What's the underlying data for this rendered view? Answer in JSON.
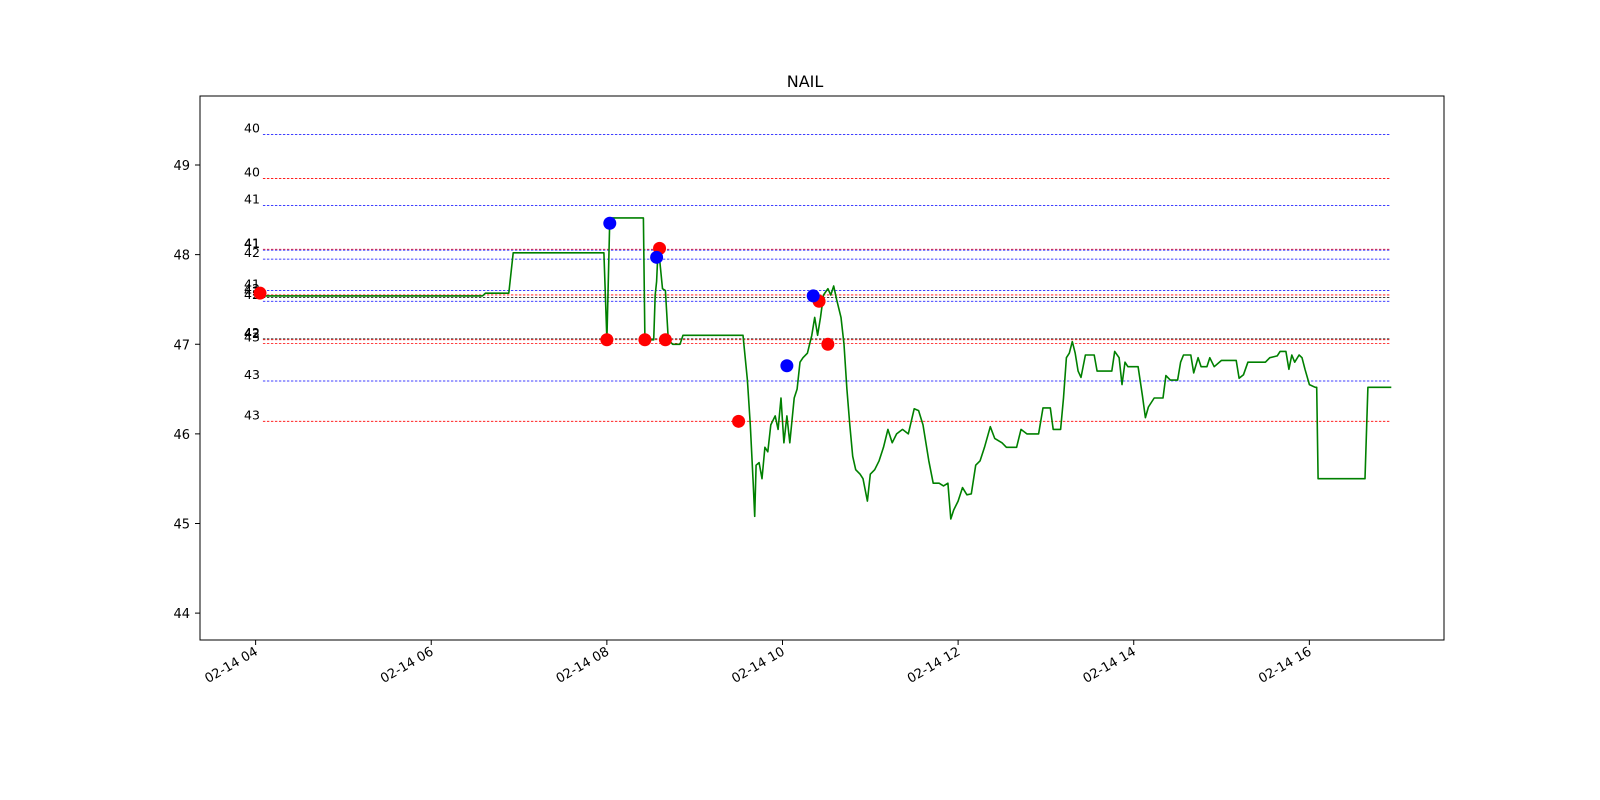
{
  "chart_data": {
    "type": "line",
    "title": "NAIL",
    "xlabel": "",
    "ylabel": "",
    "grid": false,
    "xlim": [
      "2024-02-14 03:22",
      "2024-02-14 17:32"
    ],
    "ylim": [
      43.7,
      49.77
    ],
    "x_ticks": [
      {
        "t": "2024-02-14 04:00",
        "label": "02-14 04"
      },
      {
        "t": "2024-02-14 06:00",
        "label": "02-14 06"
      },
      {
        "t": "2024-02-14 08:00",
        "label": "02-14 08"
      },
      {
        "t": "2024-02-14 10:00",
        "label": "02-14 10"
      },
      {
        "t": "2024-02-14 12:00",
        "label": "02-14 12"
      },
      {
        "t": "2024-02-14 14:00",
        "label": "02-14 14"
      },
      {
        "t": "2024-02-14 16:00",
        "label": "02-14 16"
      }
    ],
    "y_ticks": [
      44,
      45,
      46,
      47,
      48,
      49
    ],
    "price_series": {
      "color": "#008000",
      "points": [
        [
          "2024-02-14 04:00",
          47.54
        ],
        [
          "2024-02-14 06:35",
          47.54
        ],
        [
          "2024-02-14 06:37",
          47.57
        ],
        [
          "2024-02-14 06:53",
          47.57
        ],
        [
          "2024-02-14 06:56",
          48.02
        ],
        [
          "2024-02-14 07:58",
          48.02
        ],
        [
          "2024-02-14 08:00",
          47.05
        ],
        [
          "2024-02-14 08:02",
          48.41
        ],
        [
          "2024-02-14 08:25",
          48.41
        ],
        [
          "2024-02-14 08:26",
          47.05
        ],
        [
          "2024-02-14 08:32",
          47.05
        ],
        [
          "2024-02-14 08:33",
          47.55
        ],
        [
          "2024-02-14 08:34",
          47.7
        ],
        [
          "2024-02-14 08:35",
          48.07
        ],
        [
          "2024-02-14 08:36",
          47.96
        ],
        [
          "2024-02-14 08:38",
          47.62
        ],
        [
          "2024-02-14 08:40",
          47.6
        ],
        [
          "2024-02-14 08:42",
          47.05
        ],
        [
          "2024-02-14 08:45",
          47.0
        ],
        [
          "2024-02-14 08:50",
          47.0
        ],
        [
          "2024-02-14 08:52",
          47.1
        ],
        [
          "2024-02-14 09:33",
          47.1
        ],
        [
          "2024-02-14 09:36",
          46.6
        ],
        [
          "2024-02-14 09:38",
          46.1
        ],
        [
          "2024-02-14 09:40",
          45.45
        ],
        [
          "2024-02-14 09:41",
          45.08
        ],
        [
          "2024-02-14 09:42",
          45.65
        ],
        [
          "2024-02-14 09:44",
          45.68
        ],
        [
          "2024-02-14 09:46",
          45.5
        ],
        [
          "2024-02-14 09:48",
          45.85
        ],
        [
          "2024-02-14 09:50",
          45.8
        ],
        [
          "2024-02-14 09:52",
          46.1
        ],
        [
          "2024-02-14 09:55",
          46.2
        ],
        [
          "2024-02-14 09:57",
          46.05
        ],
        [
          "2024-02-14 09:59",
          46.4
        ],
        [
          "2024-02-14 10:01",
          45.9
        ],
        [
          "2024-02-14 10:03",
          46.2
        ],
        [
          "2024-02-14 10:05",
          45.9
        ],
        [
          "2024-02-14 10:08",
          46.4
        ],
        [
          "2024-02-14 10:10",
          46.5
        ],
        [
          "2024-02-14 10:12",
          46.8
        ],
        [
          "2024-02-14 10:14",
          46.85
        ],
        [
          "2024-02-14 10:17",
          46.9
        ],
        [
          "2024-02-14 10:20",
          47.1
        ],
        [
          "2024-02-14 10:22",
          47.3
        ],
        [
          "2024-02-14 10:24",
          47.1
        ],
        [
          "2024-02-14 10:26",
          47.3
        ],
        [
          "2024-02-14 10:28",
          47.55
        ],
        [
          "2024-02-14 10:31",
          47.62
        ],
        [
          "2024-02-14 10:33",
          47.55
        ],
        [
          "2024-02-14 10:35",
          47.65
        ],
        [
          "2024-02-14 10:37",
          47.5
        ],
        [
          "2024-02-14 10:40",
          47.3
        ],
        [
          "2024-02-14 10:42",
          47.0
        ],
        [
          "2024-02-14 10:44",
          46.5
        ],
        [
          "2024-02-14 10:46",
          46.1
        ],
        [
          "2024-02-14 10:48",
          45.75
        ],
        [
          "2024-02-14 10:50",
          45.6
        ],
        [
          "2024-02-14 10:53",
          45.55
        ],
        [
          "2024-02-14 10:55",
          45.5
        ],
        [
          "2024-02-14 10:58",
          45.25
        ],
        [
          "2024-02-14 11:00",
          45.55
        ],
        [
          "2024-02-14 11:03",
          45.6
        ],
        [
          "2024-02-14 11:06",
          45.7
        ],
        [
          "2024-02-14 11:09",
          45.85
        ],
        [
          "2024-02-14 11:12",
          46.05
        ],
        [
          "2024-02-14 11:15",
          45.9
        ],
        [
          "2024-02-14 11:18",
          46.0
        ],
        [
          "2024-02-14 11:22",
          46.05
        ],
        [
          "2024-02-14 11:26",
          46.0
        ],
        [
          "2024-02-14 11:30",
          46.28
        ],
        [
          "2024-02-14 11:33",
          46.26
        ],
        [
          "2024-02-14 11:36",
          46.1
        ],
        [
          "2024-02-14 11:40",
          45.7
        ],
        [
          "2024-02-14 11:43",
          45.45
        ],
        [
          "2024-02-14 11:47",
          45.45
        ],
        [
          "2024-02-14 11:50",
          45.42
        ],
        [
          "2024-02-14 11:53",
          45.45
        ],
        [
          "2024-02-14 11:55",
          45.05
        ],
        [
          "2024-02-14 11:57",
          45.15
        ],
        [
          "2024-02-14 12:00",
          45.25
        ],
        [
          "2024-02-14 12:03",
          45.4
        ],
        [
          "2024-02-14 12:06",
          45.32
        ],
        [
          "2024-02-14 12:09",
          45.33
        ],
        [
          "2024-02-14 12:12",
          45.65
        ],
        [
          "2024-02-14 12:15",
          45.7
        ],
        [
          "2024-02-14 12:18",
          45.85
        ],
        [
          "2024-02-14 12:22",
          46.08
        ],
        [
          "2024-02-14 12:25",
          45.95
        ],
        [
          "2024-02-14 12:30",
          45.9
        ],
        [
          "2024-02-14 12:33",
          45.85
        ],
        [
          "2024-02-14 12:40",
          45.85
        ],
        [
          "2024-02-14 12:43",
          46.05
        ],
        [
          "2024-02-14 12:47",
          46.0
        ],
        [
          "2024-02-14 12:55",
          46.0
        ],
        [
          "2024-02-14 12:58",
          46.29
        ],
        [
          "2024-02-14 13:03",
          46.29
        ],
        [
          "2024-02-14 13:05",
          46.05
        ],
        [
          "2024-02-14 13:10",
          46.05
        ],
        [
          "2024-02-14 13:12",
          46.4
        ],
        [
          "2024-02-14 13:14",
          46.85
        ],
        [
          "2024-02-14 13:16",
          46.9
        ],
        [
          "2024-02-14 13:18",
          47.03
        ],
        [
          "2024-02-14 13:20",
          46.9
        ],
        [
          "2024-02-14 13:22",
          46.7
        ],
        [
          "2024-02-14 13:24",
          46.63
        ],
        [
          "2024-02-14 13:27",
          46.88
        ],
        [
          "2024-02-14 13:33",
          46.88
        ],
        [
          "2024-02-14 13:35",
          46.7
        ],
        [
          "2024-02-14 13:45",
          46.7
        ],
        [
          "2024-02-14 13:47",
          46.92
        ],
        [
          "2024-02-14 13:50",
          46.85
        ],
        [
          "2024-02-14 13:52",
          46.55
        ],
        [
          "2024-02-14 13:54",
          46.8
        ],
        [
          "2024-02-14 13:56",
          46.75
        ],
        [
          "2024-02-14 14:03",
          46.75
        ],
        [
          "2024-02-14 14:06",
          46.42
        ],
        [
          "2024-02-14 14:08",
          46.18
        ],
        [
          "2024-02-14 14:10",
          46.3
        ],
        [
          "2024-02-14 14:14",
          46.4
        ],
        [
          "2024-02-14 14:20",
          46.4
        ],
        [
          "2024-02-14 14:22",
          46.65
        ],
        [
          "2024-02-14 14:25",
          46.6
        ],
        [
          "2024-02-14 14:30",
          46.6
        ],
        [
          "2024-02-14 14:32",
          46.8
        ],
        [
          "2024-02-14 14:34",
          46.88
        ],
        [
          "2024-02-14 14:39",
          46.88
        ],
        [
          "2024-02-14 14:41",
          46.68
        ],
        [
          "2024-02-14 14:44",
          46.85
        ],
        [
          "2024-02-14 14:46",
          46.75
        ],
        [
          "2024-02-14 14:50",
          46.75
        ],
        [
          "2024-02-14 14:52",
          46.85
        ],
        [
          "2024-02-14 14:55",
          46.75
        ],
        [
          "2024-02-14 15:00",
          46.82
        ],
        [
          "2024-02-14 15:10",
          46.82
        ],
        [
          "2024-02-14 15:12",
          46.62
        ],
        [
          "2024-02-14 15:15",
          46.66
        ],
        [
          "2024-02-14 15:18",
          46.8
        ],
        [
          "2024-02-14 15:30",
          46.8
        ],
        [
          "2024-02-14 15:33",
          46.85
        ],
        [
          "2024-02-14 15:38",
          46.87
        ],
        [
          "2024-02-14 15:40",
          46.92
        ],
        [
          "2024-02-14 15:44",
          46.92
        ],
        [
          "2024-02-14 15:46",
          46.72
        ],
        [
          "2024-02-14 15:48",
          46.88
        ],
        [
          "2024-02-14 15:50",
          46.8
        ],
        [
          "2024-02-14 15:53",
          46.88
        ],
        [
          "2024-02-14 15:55",
          46.85
        ],
        [
          "2024-02-14 15:57",
          46.72
        ],
        [
          "2024-02-14 16:00",
          46.55
        ],
        [
          "2024-02-14 16:04",
          46.52
        ],
        [
          "2024-02-14 16:05",
          46.52
        ],
        [
          "2024-02-14 16:06",
          45.5
        ],
        [
          "2024-02-14 16:38",
          45.5
        ],
        [
          "2024-02-14 16:40",
          46.52
        ],
        [
          "2024-02-14 16:56",
          46.52
        ]
      ]
    },
    "markers": [
      {
        "t": "2024-02-14 04:03",
        "y": 47.57,
        "color": "#ff0000"
      },
      {
        "t": "2024-02-14 08:00",
        "y": 47.05,
        "color": "#ff0000"
      },
      {
        "t": "2024-02-14 08:26",
        "y": 47.05,
        "color": "#ff0000"
      },
      {
        "t": "2024-02-14 08:40",
        "y": 47.05,
        "color": "#ff0000"
      },
      {
        "t": "2024-02-14 08:36",
        "y": 48.07,
        "color": "#ff0000"
      },
      {
        "t": "2024-02-14 09:30",
        "y": 46.14,
        "color": "#ff0000"
      },
      {
        "t": "2024-02-14 10:25",
        "y": 47.48,
        "color": "#ff0000"
      },
      {
        "t": "2024-02-14 10:31",
        "y": 47.0,
        "color": "#ff0000"
      },
      {
        "t": "2024-02-14 08:02",
        "y": 48.35,
        "color": "#0000ff"
      },
      {
        "t": "2024-02-14 08:34",
        "y": 47.97,
        "color": "#0000ff"
      },
      {
        "t": "2024-02-14 10:03",
        "y": 46.76,
        "color": "#0000ff"
      },
      {
        "t": "2024-02-14 10:21",
        "y": 47.54,
        "color": "#0000ff"
      }
    ],
    "level_lines": [
      {
        "y": 49.34,
        "color": "#0000ff",
        "label": "40"
      },
      {
        "y": 48.85,
        "color": "#ff0000",
        "label": "40"
      },
      {
        "y": 48.55,
        "color": "#0000ff",
        "label": "41"
      },
      {
        "y": 48.06,
        "color": "#ff0000",
        "label": "41"
      },
      {
        "y": 48.05,
        "color": "#0000ff",
        "label": "41"
      },
      {
        "y": 47.95,
        "color": "#0000ff",
        "label": "42"
      },
      {
        "y": 47.6,
        "color": "#0000ff",
        "label": "41"
      },
      {
        "y": 47.55,
        "color": "#ff0000",
        "label": "42"
      },
      {
        "y": 47.52,
        "color": "#000000",
        "label": "42"
      },
      {
        "y": 47.48,
        "color": "#0000ff",
        "label": "42"
      },
      {
        "y": 47.06,
        "color": "#000000",
        "label": "42"
      },
      {
        "y": 47.05,
        "color": "#ff0000",
        "label": "42"
      },
      {
        "y": 47.01,
        "color": "#ff0000",
        "label": "43"
      },
      {
        "y": 46.59,
        "color": "#0000ff",
        "label": "43"
      },
      {
        "y": 46.14,
        "color": "#ff0000",
        "label": "43"
      }
    ],
    "level_line_span": [
      "2024-02-14 04:05",
      "2024-02-14 16:55"
    ]
  }
}
